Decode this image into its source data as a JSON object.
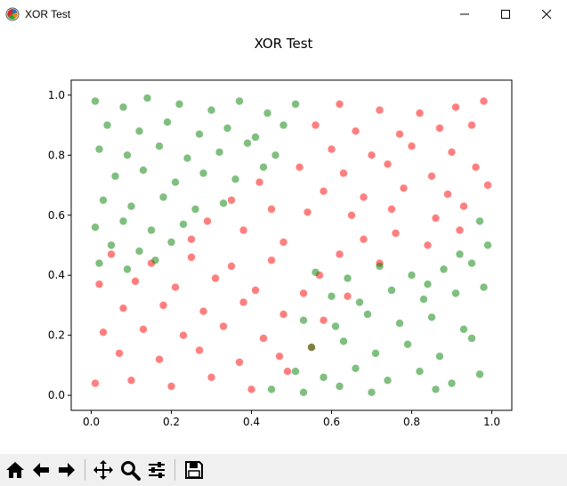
{
  "window": {
    "title": "XOR Test",
    "icon": "matplotlib-logo-icon",
    "controls": [
      "minimize-icon",
      "maximize-icon",
      "close-icon"
    ]
  },
  "colors": {
    "class_a": "#ff0000",
    "class_b": "#008000",
    "toolbar_bg": "#f0f0f0"
  },
  "toolbar": {
    "buttons": [
      "home-icon",
      "back-arrow-icon",
      "forward-arrow-icon",
      "pan-icon",
      "zoom-icon",
      "configure-subplots-icon",
      "save-icon"
    ]
  },
  "chart_data": {
    "type": "scatter",
    "title": "XOR Test",
    "xlabel": "",
    "ylabel": "",
    "xlim": [
      -0.05,
      1.05
    ],
    "ylim": [
      -0.05,
      1.05
    ],
    "xticks": [
      "0.0",
      "0.2",
      "0.4",
      "0.6",
      "0.8",
      "1.0"
    ],
    "yticks": [
      "0.0",
      "0.2",
      "0.4",
      "0.6",
      "0.8",
      "1.0"
    ],
    "grid": false,
    "legend": "none",
    "alpha": 0.5,
    "series": [
      {
        "color": "#ff0000",
        "points": [
          [
            0.62,
            0.97
          ],
          [
            0.72,
            0.95
          ],
          [
            0.82,
            0.94
          ],
          [
            0.91,
            0.96
          ],
          [
            0.98,
            0.98
          ],
          [
            0.56,
            0.9
          ],
          [
            0.66,
            0.88
          ],
          [
            0.77,
            0.87
          ],
          [
            0.87,
            0.89
          ],
          [
            0.95,
            0.9
          ],
          [
            0.6,
            0.82
          ],
          [
            0.7,
            0.8
          ],
          [
            0.8,
            0.83
          ],
          [
            0.9,
            0.81
          ],
          [
            0.52,
            0.76
          ],
          [
            0.63,
            0.74
          ],
          [
            0.74,
            0.77
          ],
          [
            0.85,
            0.73
          ],
          [
            0.96,
            0.76
          ],
          [
            0.58,
            0.68
          ],
          [
            0.68,
            0.66
          ],
          [
            0.78,
            0.69
          ],
          [
            0.89,
            0.67
          ],
          [
            0.99,
            0.7
          ],
          [
            0.54,
            0.61
          ],
          [
            0.65,
            0.6
          ],
          [
            0.75,
            0.62
          ],
          [
            0.86,
            0.59
          ],
          [
            0.93,
            0.63
          ],
          [
            0.05,
            0.47
          ],
          [
            0.15,
            0.44
          ],
          [
            0.25,
            0.46
          ],
          [
            0.35,
            0.43
          ],
          [
            0.45,
            0.45
          ],
          [
            0.02,
            0.37
          ],
          [
            0.11,
            0.38
          ],
          [
            0.21,
            0.36
          ],
          [
            0.31,
            0.39
          ],
          [
            0.41,
            0.35
          ],
          [
            0.08,
            0.29
          ],
          [
            0.18,
            0.3
          ],
          [
            0.28,
            0.28
          ],
          [
            0.38,
            0.31
          ],
          [
            0.48,
            0.27
          ],
          [
            0.03,
            0.21
          ],
          [
            0.13,
            0.22
          ],
          [
            0.23,
            0.2
          ],
          [
            0.33,
            0.23
          ],
          [
            0.43,
            0.19
          ],
          [
            0.07,
            0.14
          ],
          [
            0.17,
            0.12
          ],
          [
            0.27,
            0.15
          ],
          [
            0.37,
            0.11
          ],
          [
            0.47,
            0.13
          ],
          [
            0.01,
            0.04
          ],
          [
            0.1,
            0.05
          ],
          [
            0.2,
            0.03
          ],
          [
            0.3,
            0.06
          ],
          [
            0.4,
            0.02
          ],
          [
            0.49,
            0.08
          ],
          [
            0.35,
            0.65
          ],
          [
            0.42,
            0.71
          ],
          [
            0.29,
            0.58
          ],
          [
            0.45,
            0.62
          ],
          [
            0.25,
            0.52
          ],
          [
            0.38,
            0.55
          ],
          [
            0.48,
            0.51
          ],
          [
            0.57,
            0.4
          ],
          [
            0.64,
            0.33
          ],
          [
            0.72,
            0.44
          ],
          [
            0.58,
            0.25
          ],
          [
            0.55,
            0.16
          ],
          [
            0.62,
            0.47
          ],
          [
            0.68,
            0.52
          ],
          [
            0.76,
            0.54
          ],
          [
            0.84,
            0.5
          ],
          [
            0.92,
            0.55
          ],
          [
            0.53,
            0.34
          ]
        ]
      },
      {
        "color": "#008000",
        "points": [
          [
            0.01,
            0.98
          ],
          [
            0.08,
            0.96
          ],
          [
            0.14,
            0.99
          ],
          [
            0.22,
            0.97
          ],
          [
            0.3,
            0.95
          ],
          [
            0.37,
            0.98
          ],
          [
            0.44,
            0.94
          ],
          [
            0.51,
            0.97
          ],
          [
            0.04,
            0.9
          ],
          [
            0.12,
            0.88
          ],
          [
            0.19,
            0.91
          ],
          [
            0.27,
            0.87
          ],
          [
            0.34,
            0.89
          ],
          [
            0.41,
            0.86
          ],
          [
            0.48,
            0.9
          ],
          [
            0.02,
            0.82
          ],
          [
            0.09,
            0.8
          ],
          [
            0.17,
            0.83
          ],
          [
            0.24,
            0.79
          ],
          [
            0.32,
            0.81
          ],
          [
            0.39,
            0.84
          ],
          [
            0.46,
            0.8
          ],
          [
            0.06,
            0.73
          ],
          [
            0.13,
            0.75
          ],
          [
            0.21,
            0.71
          ],
          [
            0.28,
            0.74
          ],
          [
            0.36,
            0.72
          ],
          [
            0.43,
            0.76
          ],
          [
            0.03,
            0.65
          ],
          [
            0.1,
            0.63
          ],
          [
            0.18,
            0.66
          ],
          [
            0.26,
            0.62
          ],
          [
            0.33,
            0.64
          ],
          [
            0.01,
            0.56
          ],
          [
            0.08,
            0.58
          ],
          [
            0.15,
            0.55
          ],
          [
            0.23,
            0.57
          ],
          [
            0.05,
            0.5
          ],
          [
            0.12,
            0.48
          ],
          [
            0.2,
            0.51
          ],
          [
            0.02,
            0.44
          ],
          [
            0.09,
            0.42
          ],
          [
            0.16,
            0.45
          ],
          [
            0.56,
            0.41
          ],
          [
            0.64,
            0.39
          ],
          [
            0.72,
            0.43
          ],
          [
            0.8,
            0.4
          ],
          [
            0.88,
            0.42
          ],
          [
            0.95,
            0.44
          ],
          [
            0.6,
            0.33
          ],
          [
            0.67,
            0.31
          ],
          [
            0.75,
            0.35
          ],
          [
            0.83,
            0.32
          ],
          [
            0.91,
            0.34
          ],
          [
            0.98,
            0.36
          ],
          [
            0.53,
            0.25
          ],
          [
            0.61,
            0.23
          ],
          [
            0.69,
            0.27
          ],
          [
            0.77,
            0.24
          ],
          [
            0.85,
            0.26
          ],
          [
            0.93,
            0.22
          ],
          [
            0.55,
            0.16
          ],
          [
            0.63,
            0.18
          ],
          [
            0.71,
            0.14
          ],
          [
            0.79,
            0.17
          ],
          [
            0.87,
            0.13
          ],
          [
            0.95,
            0.19
          ],
          [
            0.51,
            0.08
          ],
          [
            0.58,
            0.06
          ],
          [
            0.66,
            0.09
          ],
          [
            0.74,
            0.05
          ],
          [
            0.82,
            0.08
          ],
          [
            0.9,
            0.04
          ],
          [
            0.97,
            0.07
          ],
          [
            0.45,
            0.02
          ],
          [
            0.53,
            0.01
          ],
          [
            0.62,
            0.03
          ],
          [
            0.7,
            0.01
          ],
          [
            0.86,
            0.02
          ],
          [
            0.99,
            0.5
          ],
          [
            0.97,
            0.58
          ],
          [
            0.92,
            0.47
          ],
          [
            0.84,
            0.37
          ]
        ]
      }
    ]
  }
}
